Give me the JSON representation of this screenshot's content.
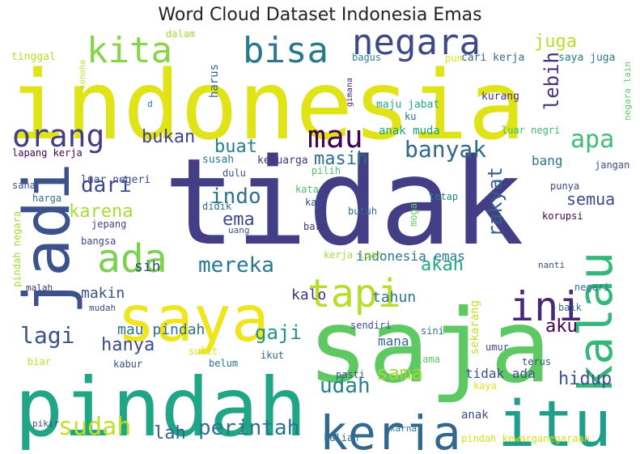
{
  "title": "Word Cloud Dataset Indonesia Emas",
  "words": [
    {
      "text": "indonesia",
      "color": "#dfe318"
    },
    {
      "text": "tidak",
      "color": "#433e85"
    },
    {
      "text": "saja",
      "color": "#5ec962"
    },
    {
      "text": "pindah",
      "color": "#21a685"
    },
    {
      "text": "saya",
      "color": "#f0e51c"
    },
    {
      "text": "jadi",
      "color": "#3b528b"
    },
    {
      "text": "itu",
      "color": "#1f9e89"
    },
    {
      "text": "kerja",
      "color": "#31688e"
    },
    {
      "text": "kalau",
      "color": "#35b779"
    },
    {
      "text": "ini",
      "color": "#482878"
    },
    {
      "text": "tapi",
      "color": "#b5de2b"
    },
    {
      "text": "ada",
      "color": "#7ad151"
    },
    {
      "text": "negara",
      "color": "#3e4989"
    },
    {
      "text": "bisa",
      "color": "#2a788e"
    },
    {
      "text": "kita",
      "color": "#86d549"
    },
    {
      "text": "orang",
      "color": "#433e85"
    },
    {
      "text": "mau",
      "color": "#440154"
    },
    {
      "text": "banyak",
      "color": "#31688e"
    },
    {
      "text": "sudah",
      "color": "#c2df23"
    },
    {
      "text": "perintah",
      "color": "#2c728e"
    },
    {
      "text": "apa",
      "color": "#3dbc74"
    },
    {
      "text": "rakyat",
      "color": "#355f8d"
    },
    {
      "text": "juga",
      "color": "#b8de29"
    },
    {
      "text": "lebih",
      "color": "#46327e"
    },
    {
      "text": "mereka",
      "color": "#2a788e"
    },
    {
      "text": "lagi",
      "color": "#3b528b"
    },
    {
      "text": "dari",
      "color": "#3e4989"
    },
    {
      "text": "masih",
      "color": "#2f6c8e"
    },
    {
      "text": "bukan",
      "color": "#414487"
    },
    {
      "text": "buat",
      "color": "#277f8e"
    },
    {
      "text": "indo",
      "color": "#2d708e"
    },
    {
      "text": "karena",
      "color": "#a8db34"
    },
    {
      "text": "semua",
      "color": "#3e4a89"
    },
    {
      "text": "akan",
      "color": "#22a785"
    },
    {
      "text": "hanya",
      "color": "#3e4989"
    },
    {
      "text": "gaji",
      "color": "#20928c"
    },
    {
      "text": "udah",
      "color": "#26828e"
    },
    {
      "text": "sama",
      "color": "#9fda3a"
    },
    {
      "text": "hidup",
      "color": "#3b528b"
    },
    {
      "text": "aku",
      "color": "#440154"
    },
    {
      "text": "lah",
      "color": "#355f8d"
    },
    {
      "text": "ema",
      "color": "#3e4989"
    },
    {
      "text": "indonesia emas",
      "color": "#2a768e"
    },
    {
      "text": "sih",
      "color": "#3f4788"
    },
    {
      "text": "makin",
      "color": "#3b528b"
    },
    {
      "text": "kalo",
      "color": "#46337f"
    },
    {
      "text": "tahun",
      "color": "#2a768e"
    },
    {
      "text": "mau pindah",
      "color": "#2c728e"
    },
    {
      "text": "tidak ada",
      "color": "#3b528b"
    },
    {
      "text": "mana",
      "color": "#31688e"
    },
    {
      "text": "sekarang",
      "color": "#c5e021"
    },
    {
      "text": "anak",
      "color": "#3e4989"
    },
    {
      "text": "anak muda",
      "color": "#1fa188"
    },
    {
      "text": "bang",
      "color": "#2a788e"
    },
    {
      "text": "harus",
      "color": "#31688e"
    },
    {
      "text": "pindah negara",
      "color": "#a5db36"
    },
    {
      "text": "tinggal",
      "color": "#b8de29"
    },
    {
      "text": "dalam",
      "color": "#a2da37"
    },
    {
      "text": "konoha",
      "color": "#bddf26"
    },
    {
      "text": "bagus",
      "color": "#26828e"
    },
    {
      "text": "pun",
      "color": "#dde318"
    },
    {
      "text": "cari kerja",
      "color": "#31688e"
    },
    {
      "text": "saya juga",
      "color": "#2a788e"
    },
    {
      "text": "gimana",
      "color": "#482475"
    },
    {
      "text": "maju jabat",
      "color": "#22a884"
    },
    {
      "text": "kurang",
      "color": "#46327e"
    },
    {
      "text": "negara lain",
      "color": "#5ec962"
    },
    {
      "text": "ku",
      "color": "#2f6c8e"
    },
    {
      "text": "luar negri",
      "color": "#3dbc74"
    },
    {
      "text": "d",
      "color": "#2c728e"
    },
    {
      "text": "lapang kerja",
      "color": "#440154"
    },
    {
      "text": "sana",
      "color": "#3b528b"
    },
    {
      "text": "luar negeri",
      "color": "#3e4989"
    },
    {
      "text": "susah",
      "color": "#2a788e"
    },
    {
      "text": "keluarga",
      "color": "#46337f"
    },
    {
      "text": "pilih",
      "color": "#4ac16d"
    },
    {
      "text": "dulu",
      "color": "#3b528b"
    },
    {
      "text": "jangan",
      "color": "#3e4989"
    },
    {
      "text": "kata",
      "color": "#4ac16d"
    },
    {
      "text": "harga",
      "color": "#31688e"
    },
    {
      "text": "didik",
      "color": "#2c728e"
    },
    {
      "text": "kan",
      "color": "#3e4989"
    },
    {
      "text": "butuh",
      "color": "#2f6c8e"
    },
    {
      "text": "tetap",
      "color": "#26828e"
    },
    {
      "text": "punya",
      "color": "#3e4989"
    },
    {
      "text": "jepang",
      "color": "#414487"
    },
    {
      "text": "uang",
      "color": "#3b528b"
    },
    {
      "text": "baru",
      "color": "#46327e"
    },
    {
      "text": "moga",
      "color": "#65cb5e"
    },
    {
      "text": "korupsi",
      "color": "#440154"
    },
    {
      "text": "bangsa",
      "color": "#3f4788"
    },
    {
      "text": "kerja luar",
      "color": "#a8db34"
    },
    {
      "text": "nanti",
      "color": "#3e4989"
    },
    {
      "text": "malah",
      "color": "#46337f"
    },
    {
      "text": "negeri",
      "color": "#2c728e"
    },
    {
      "text": "mudah",
      "color": "#3e4989"
    },
    {
      "text": "baik",
      "color": "#2c728e"
    },
    {
      "text": "sendiri",
      "color": "#3b528b"
    },
    {
      "text": "sini",
      "color": "#2c728e"
    },
    {
      "text": "umur",
      "color": "#3e4989"
    },
    {
      "text": "biar",
      "color": "#c2df23"
    },
    {
      "text": "sulit",
      "color": "#d2e21b"
    },
    {
      "text": "ikut",
      "color": "#31688e"
    },
    {
      "text": "lama",
      "color": "#5ec962"
    },
    {
      "text": "terus",
      "color": "#3b528b"
    },
    {
      "text": "kabur",
      "color": "#3e4989"
    },
    {
      "text": "belum",
      "color": "#2c728e"
    },
    {
      "text": "pasti",
      "color": "#3b528b"
    },
    {
      "text": "kaya",
      "color": "#dde318"
    },
    {
      "text": "pikir",
      "color": "#3e4989"
    },
    {
      "text": "karna",
      "color": "#2a788e"
    },
    {
      "text": "kalian",
      "color": "#2c728e"
    },
    {
      "text": "pindah kewarganegaraan",
      "color": "#d2e21b"
    }
  ]
}
